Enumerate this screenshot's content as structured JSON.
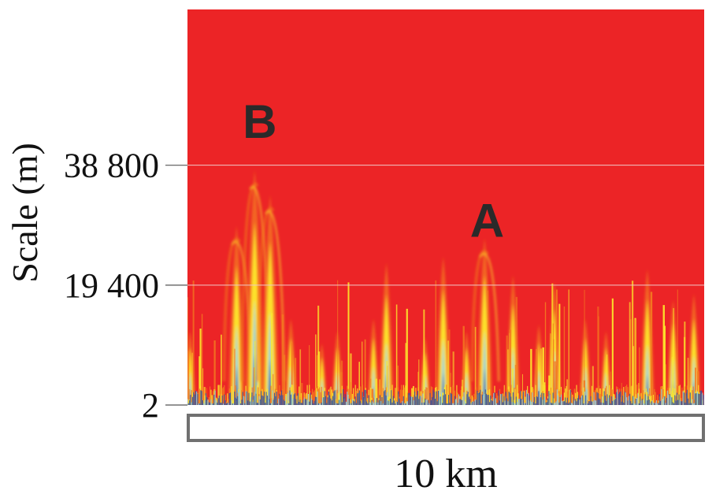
{
  "chart_data": {
    "type": "heatmap",
    "title": "",
    "ylabel": "Scale (m)",
    "xlabel": "",
    "yticks": [
      {
        "value": 2,
        "label": "2"
      },
      {
        "value": 19400,
        "label": "19 400"
      },
      {
        "value": 38800,
        "label": "38 800"
      }
    ],
    "ylim": [
      2,
      64000
    ],
    "x_range_km": [
      0,
      10
    ],
    "scale_bar": {
      "length_km": 10,
      "label": "10 km"
    },
    "grid": "horizontal at labeled ticks",
    "annotations": [
      {
        "label": "B",
        "x_km": 1.4,
        "scale_m": 46000
      },
      {
        "label": "A",
        "x_km": 5.8,
        "scale_m": 30000
      }
    ],
    "features": [
      {
        "x_km": 0.05,
        "peak_m": 12000
      },
      {
        "x_km": 0.95,
        "peak_m": 29000
      },
      {
        "x_km": 1.3,
        "peak_m": 38000
      },
      {
        "x_km": 1.6,
        "peak_m": 34000
      },
      {
        "x_km": 2.0,
        "peak_m": 14000
      },
      {
        "x_km": 2.6,
        "peak_m": 10000
      },
      {
        "x_km": 2.9,
        "peak_m": 12000
      },
      {
        "x_km": 3.6,
        "peak_m": 14000
      },
      {
        "x_km": 3.85,
        "peak_m": 23000
      },
      {
        "x_km": 4.6,
        "peak_m": 11000
      },
      {
        "x_km": 4.95,
        "peak_m": 24000
      },
      {
        "x_km": 5.4,
        "peak_m": 12000
      },
      {
        "x_km": 5.75,
        "peak_m": 27000
      },
      {
        "x_km": 6.3,
        "peak_m": 21000
      },
      {
        "x_km": 6.8,
        "peak_m": 13000
      },
      {
        "x_km": 7.1,
        "peak_m": 20000
      },
      {
        "x_km": 7.7,
        "peak_m": 14000
      },
      {
        "x_km": 8.1,
        "peak_m": 12000
      },
      {
        "x_km": 8.9,
        "peak_m": 22000
      },
      {
        "x_km": 9.4,
        "peak_m": 17000
      },
      {
        "x_km": 9.8,
        "peak_m": 18000
      }
    ],
    "colors": {
      "background": "#ec2426",
      "orange": "#f47a20",
      "yellow": "#fde92b",
      "light_blue": "#8ed1e6",
      "dark_blue": "#2f54a6",
      "gridline": "#f0c8c8",
      "scale_bar_border": "#707070"
    }
  }
}
